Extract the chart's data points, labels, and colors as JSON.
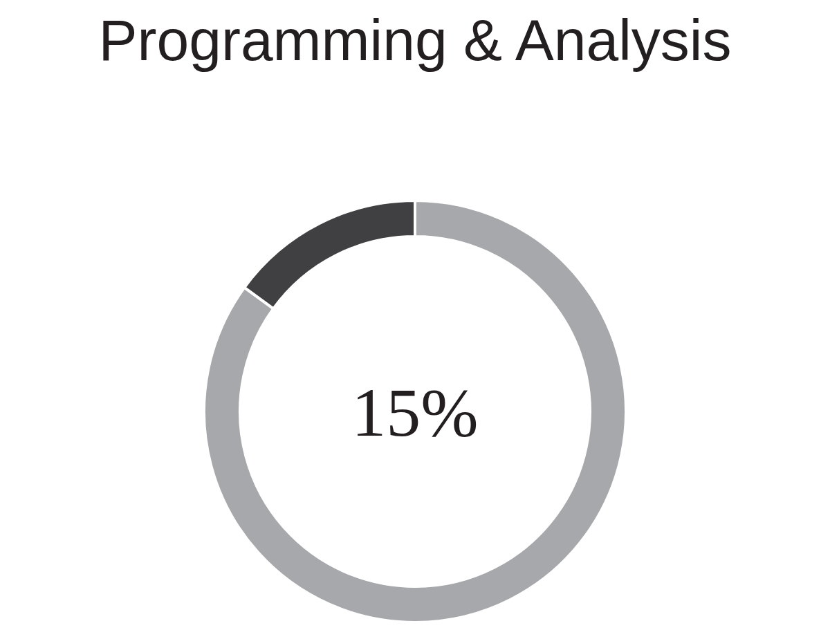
{
  "chart_data": {
    "type": "donut",
    "title": "Programming & Analysis",
    "categories": [
      null,
      null
    ],
    "values": [
      85,
      15
    ],
    "colors": [
      "#a7a8ab",
      "#404042"
    ],
    "annotations": [
      "15%"
    ]
  }
}
